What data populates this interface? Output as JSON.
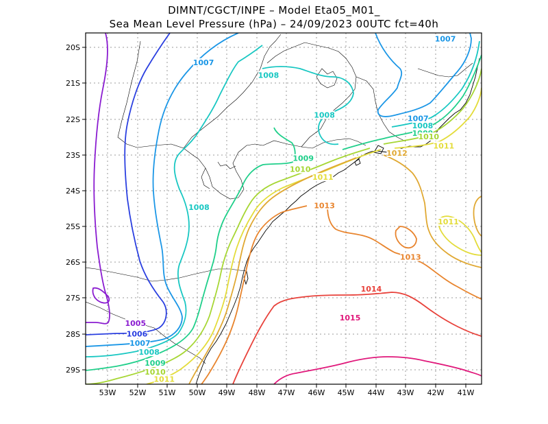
{
  "header": {
    "line1": "DIMNT/CGCT/INPE –  Model Eta05_M01_",
    "line2": "Sea Mean Level Pressure (hPa) – 24/09/2023 00UTC fct=40h"
  },
  "axes": {
    "lon_labels": [
      "53W",
      "52W",
      "51W",
      "50W",
      "49W",
      "48W",
      "47W",
      "46W",
      "45W",
      "44W",
      "43W",
      "42W",
      "41W"
    ],
    "lat_labels": [
      "20S",
      "21S",
      "22S",
      "23S",
      "24S",
      "25S",
      "26S",
      "27S",
      "28S",
      "29S"
    ]
  },
  "map_extent": {
    "lon_min": -53.6,
    "lon_max": -40.5,
    "lat_min": -29.4,
    "lat_max": -19.7
  },
  "contour_colors": {
    "1005": "#8a1bd0",
    "1006": "#2a3fe0",
    "1007": "#1a96e6",
    "1008": "#18c7c2",
    "1009": "#1fcf8a",
    "1010": "#a6d633",
    "1011": "#e3dc3a",
    "1012": "#e0a832",
    "1013": "#e8842d",
    "1014": "#e8413a",
    "1015": "#e0177a"
  },
  "contour_labels": [
    {
      "text": "1005",
      "level": "1005",
      "lon": -51.95,
      "lat": -27.75
    },
    {
      "text": "1006",
      "level": "1006",
      "lon": -51.9,
      "lat": -28.05
    },
    {
      "text": "1007",
      "level": "1007",
      "lon": -51.8,
      "lat": -28.3
    },
    {
      "text": "1008",
      "level": "1008",
      "lon": -51.5,
      "lat": -28.55
    },
    {
      "text": "1009",
      "level": "1009",
      "lon": -51.3,
      "lat": -28.85
    },
    {
      "text": "1010",
      "level": "1010",
      "lon": -51.3,
      "lat": -29.1
    },
    {
      "text": "1011",
      "level": "1011",
      "lon": -51.0,
      "lat": -29.3
    },
    {
      "text": "1007",
      "level": "1007",
      "lon": -49.7,
      "lat": -20.55
    },
    {
      "text": "1008",
      "level": "1008",
      "lon": -47.55,
      "lat": -20.9
    },
    {
      "text": "1008",
      "level": "1008",
      "lon": -45.7,
      "lat": -22.0
    },
    {
      "text": "1008",
      "level": "1008",
      "lon": -49.85,
      "lat": -24.55
    },
    {
      "text": "1009",
      "level": "1009",
      "lon": -46.4,
      "lat": -23.2
    },
    {
      "text": "1010",
      "level": "1010",
      "lon": -46.5,
      "lat": -23.5
    },
    {
      "text": "1011",
      "level": "1011",
      "lon": -45.75,
      "lat": -23.72
    },
    {
      "text": "1013",
      "level": "1013",
      "lon": -45.7,
      "lat": -24.5
    },
    {
      "text": "1007",
      "level": "1007",
      "lon": -42.6,
      "lat": -22.1
    },
    {
      "text": "1008",
      "level": "1008",
      "lon": -42.45,
      "lat": -22.3
    },
    {
      "text": "1009",
      "level": "1009",
      "lon": -42.45,
      "lat": -22.5
    },
    {
      "text": "1010",
      "level": "1010",
      "lon": -42.25,
      "lat": -22.6
    },
    {
      "text": "1011",
      "level": "1011",
      "lon": -41.75,
      "lat": -22.85
    },
    {
      "text": "1012",
      "level": "1012",
      "lon": -43.3,
      "lat": -23.05
    },
    {
      "text": "1007",
      "level": "1007",
      "lon": -41.7,
      "lat": -19.9
    },
    {
      "text": "1011",
      "level": "1011",
      "lon": -41.6,
      "lat": -24.95
    },
    {
      "text": "1013",
      "level": "1013",
      "lon": -42.85,
      "lat": -25.92
    },
    {
      "text": "1014",
      "level": "1014",
      "lon": -44.15,
      "lat": -26.8
    },
    {
      "text": "1015",
      "level": "1015",
      "lon": -44.85,
      "lat": -27.6
    }
  ]
}
